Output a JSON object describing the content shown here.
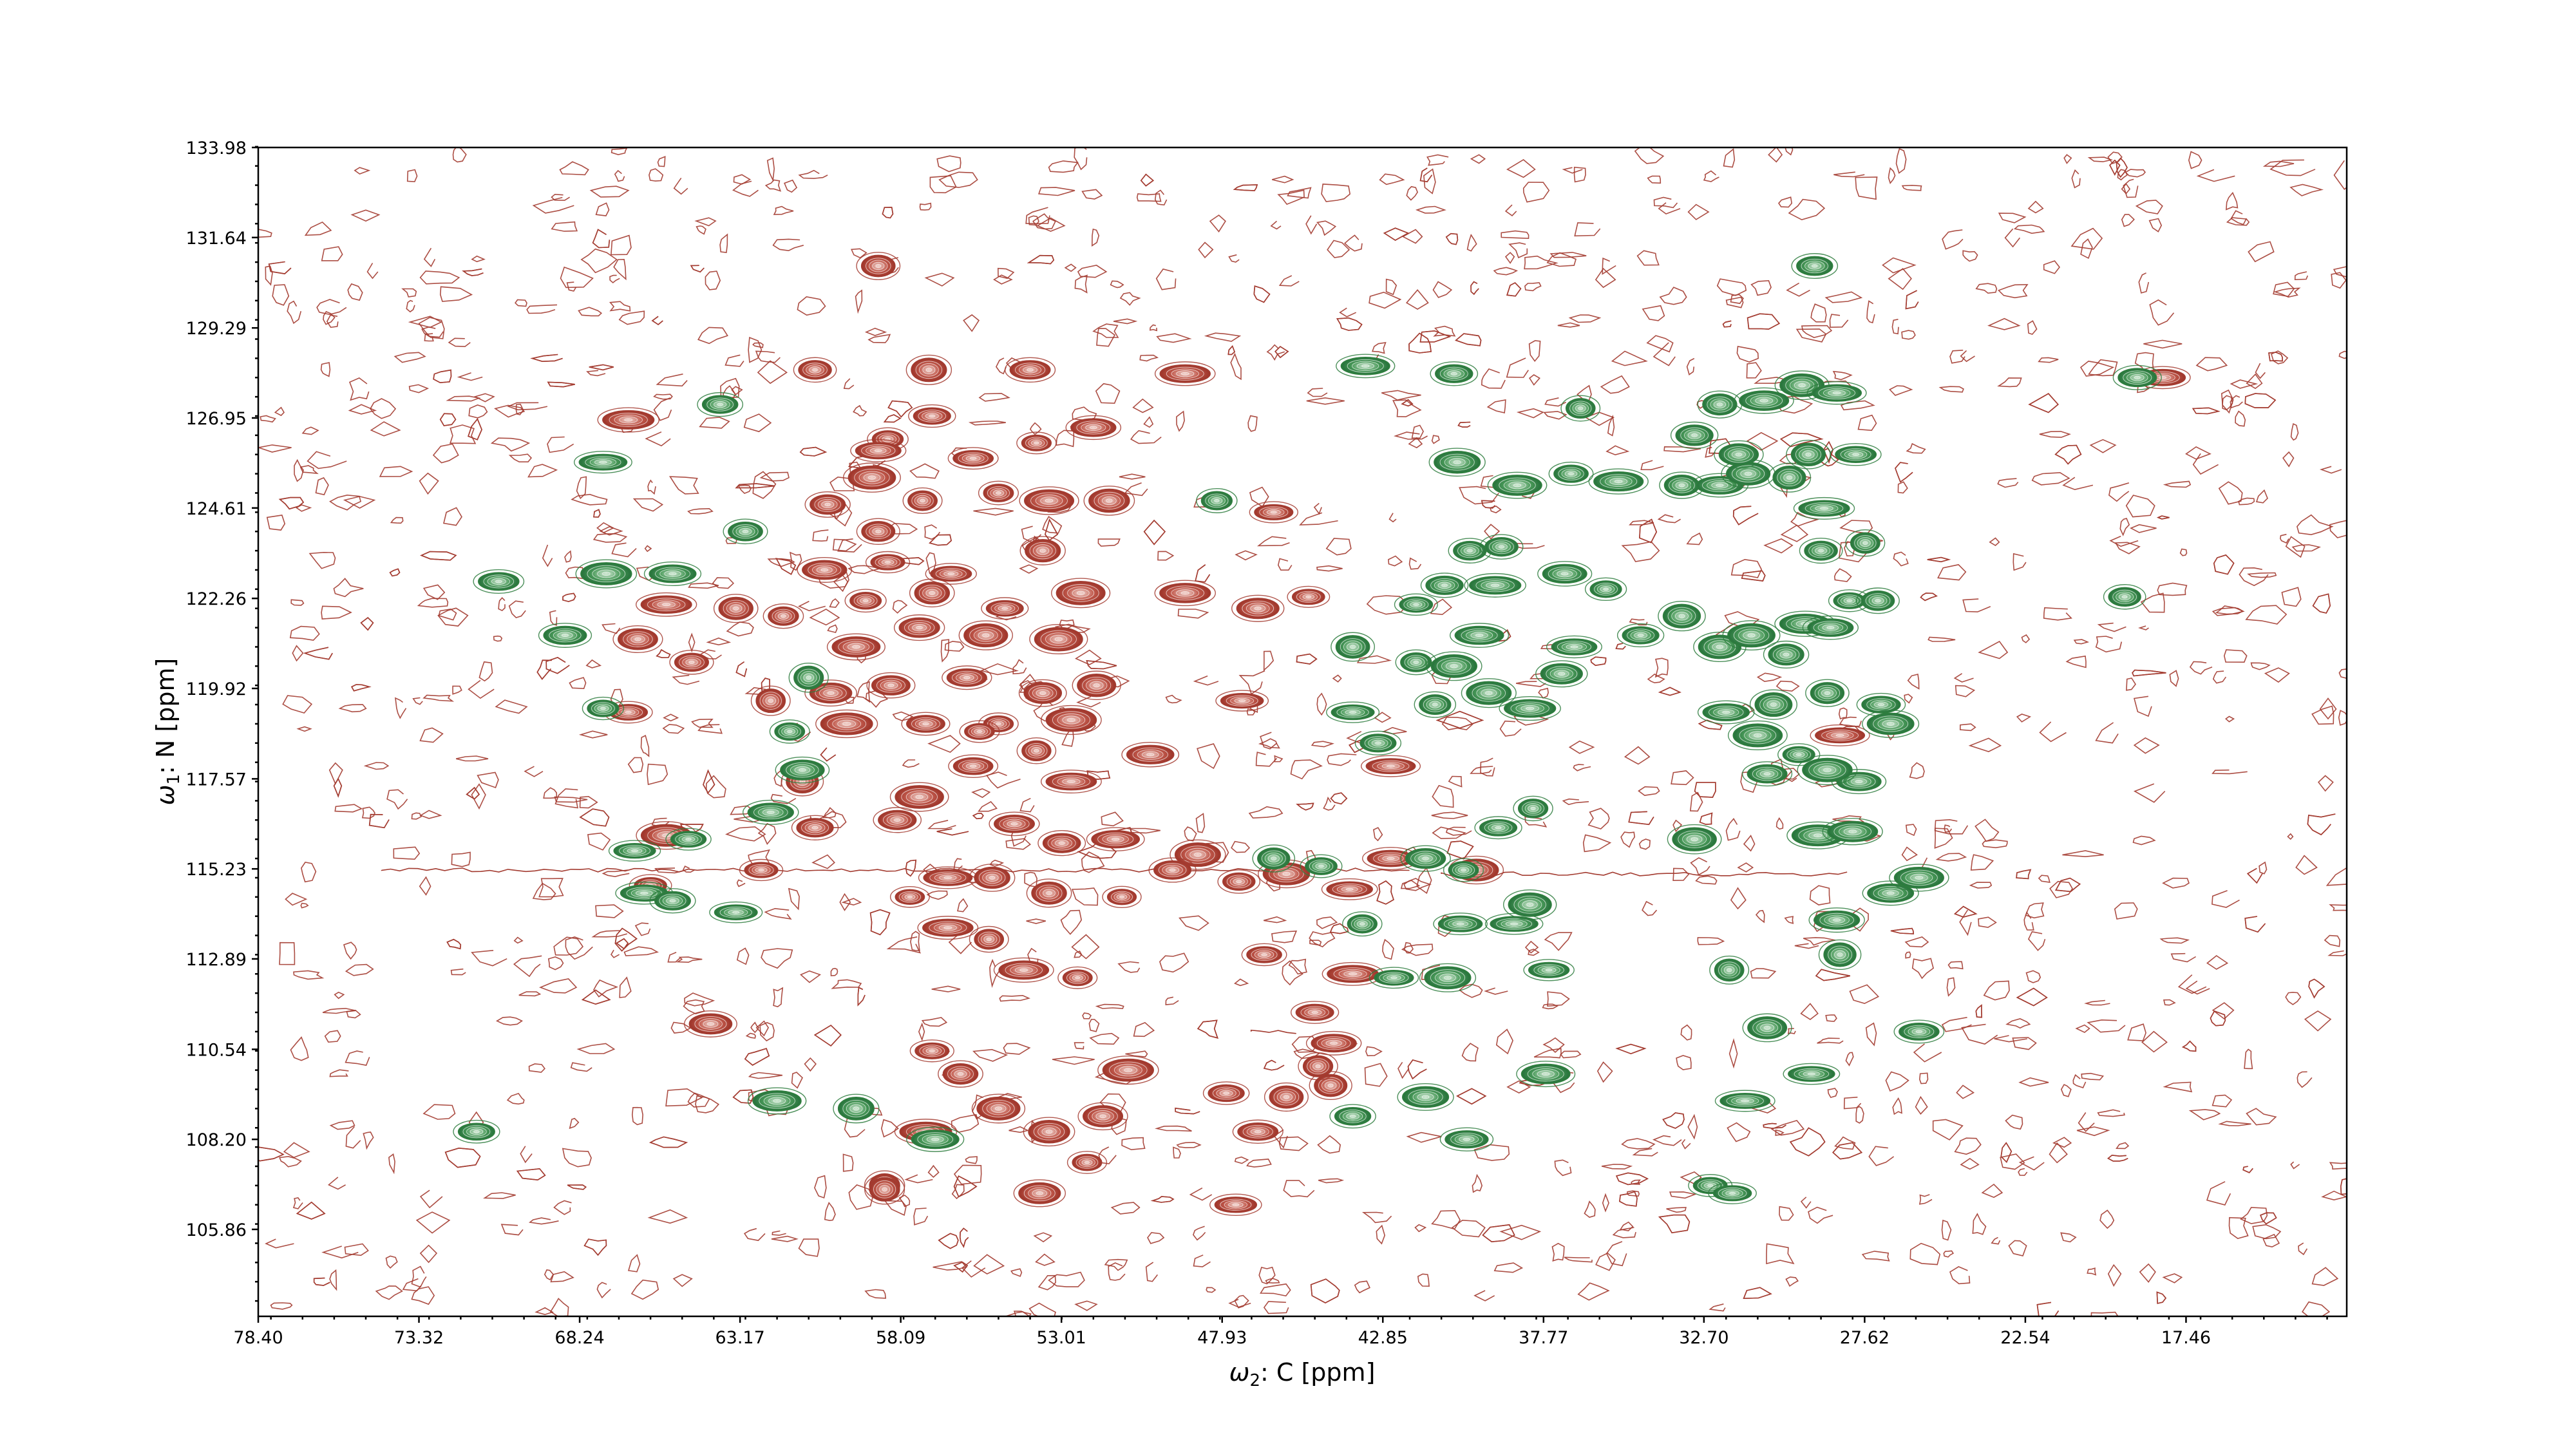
{
  "chart_data": {
    "type": "scatter",
    "subtype": "2D NMR contour spectrum",
    "xlabel_omega": "ω",
    "xlabel_sub": "2",
    "xlabel_rest": ": C [ppm]",
    "ylabel_omega": "ω",
    "ylabel_sub": "1",
    "ylabel_rest": ": N [ppm]",
    "x_ticks": [
      "78.40",
      "73.32",
      "68.24",
      "63.17",
      "58.09",
      "53.01",
      "47.93",
      "42.85",
      "37.77",
      "32.70",
      "27.62",
      "22.54",
      "17.46"
    ],
    "y_ticks": [
      "105.86",
      "108.20",
      "110.54",
      "112.89",
      "115.23",
      "117.57",
      "119.92",
      "122.26",
      "124.61",
      "126.95",
      "129.29",
      "131.64",
      "133.98"
    ],
    "xlim": [
      78.4,
      12.38
    ],
    "ylim": [
      133.98,
      103.6
    ],
    "x_reversed": true,
    "y_reversed": true,
    "grid": false,
    "colors": {
      "positive": "#a33b30",
      "positive_fill": "#b5473c",
      "negative": "#2e7d3e",
      "negative_fill": "#3b8f4c"
    },
    "series": [
      {
        "name": "positive",
        "color": "#a33b30",
        "points": [
          [
            58.6,
            107.0
          ],
          [
            57.3,
            108.4
          ],
          [
            55.0,
            109.0
          ],
          [
            56.2,
            109.9
          ],
          [
            53.4,
            108.4
          ],
          [
            52.2,
            107.6
          ],
          [
            51.7,
            108.8
          ],
          [
            50.9,
            110.0
          ],
          [
            53.7,
            106.8
          ],
          [
            58.6,
            106.9
          ],
          [
            57.1,
            110.5
          ],
          [
            64.1,
            111.2
          ],
          [
            55.3,
            113.4
          ],
          [
            54.2,
            112.6
          ],
          [
            52.5,
            112.4
          ],
          [
            57.8,
            114.5
          ],
          [
            55.2,
            115.0
          ],
          [
            53.4,
            114.6
          ],
          [
            51.1,
            114.5
          ],
          [
            48.7,
            115.6
          ],
          [
            47.4,
            114.9
          ],
          [
            45.9,
            115.1
          ],
          [
            43.9,
            114.7
          ],
          [
            43.8,
            112.5
          ],
          [
            47.8,
            109.4
          ],
          [
            45.9,
            109.3
          ],
          [
            44.5,
            109.6
          ],
          [
            46.8,
            108.4
          ],
          [
            44.9,
            110.1
          ],
          [
            44.4,
            110.7
          ],
          [
            45.0,
            111.5
          ],
          [
            47.5,
            106.5
          ],
          [
            66.0,
            114.8
          ],
          [
            65.5,
            116.1
          ],
          [
            62.5,
            115.2
          ],
          [
            56.6,
            115.0
          ],
          [
            53.0,
            115.9
          ],
          [
            49.5,
            115.2
          ],
          [
            60.8,
            116.3
          ],
          [
            58.2,
            116.5
          ],
          [
            54.5,
            116.4
          ],
          [
            51.3,
            116.0
          ],
          [
            57.5,
            117.1
          ],
          [
            55.8,
            117.9
          ],
          [
            53.8,
            118.3
          ],
          [
            52.7,
            117.5
          ],
          [
            59.8,
            119.0
          ],
          [
            57.3,
            119.0
          ],
          [
            55.0,
            119.0
          ],
          [
            52.7,
            119.1
          ],
          [
            60.3,
            119.8
          ],
          [
            58.4,
            120.0
          ],
          [
            56.0,
            120.2
          ],
          [
            53.6,
            119.8
          ],
          [
            51.9,
            120.0
          ],
          [
            59.5,
            121.0
          ],
          [
            57.5,
            121.5
          ],
          [
            55.4,
            121.3
          ],
          [
            53.1,
            121.2
          ],
          [
            61.8,
            121.8
          ],
          [
            59.2,
            122.2
          ],
          [
            57.1,
            122.4
          ],
          [
            54.8,
            122.0
          ],
          [
            52.4,
            122.4
          ],
          [
            60.5,
            123.0
          ],
          [
            58.5,
            123.2
          ],
          [
            56.5,
            122.9
          ],
          [
            53.6,
            123.5
          ],
          [
            66.7,
            119.3
          ],
          [
            62.2,
            119.6
          ],
          [
            64.7,
            120.6
          ],
          [
            63.3,
            122.0
          ],
          [
            65.5,
            122.1
          ],
          [
            66.4,
            121.2
          ],
          [
            58.8,
            124.0
          ],
          [
            57.4,
            124.8
          ],
          [
            55.0,
            125.0
          ],
          [
            53.4,
            124.8
          ],
          [
            51.5,
            124.8
          ],
          [
            59.0,
            125.4
          ],
          [
            55.8,
            125.9
          ],
          [
            53.8,
            126.3
          ],
          [
            52.0,
            126.7
          ],
          [
            57.1,
            127.0
          ],
          [
            58.5,
            126.4
          ],
          [
            60.8,
            128.2
          ],
          [
            57.2,
            128.2
          ],
          [
            54.0,
            128.2
          ],
          [
            49.1,
            128.1
          ],
          [
            49.1,
            122.4
          ],
          [
            46.8,
            122.0
          ],
          [
            45.2,
            122.3
          ],
          [
            46.3,
            124.5
          ],
          [
            47.3,
            119.6
          ],
          [
            66.7,
            126.9
          ],
          [
            58.8,
            130.9
          ],
          [
            39.9,
            115.2
          ],
          [
            42.6,
            115.5
          ],
          [
            42.6,
            117.9
          ],
          [
            28.4,
            118.7
          ],
          [
            18.2,
            128.0
          ],
          [
            46.6,
            113.0
          ],
          [
            56.6,
            113.7
          ],
          [
            61.2,
            117.5
          ],
          [
            50.2,
            118.2
          ],
          [
            55.6,
            118.8
          ],
          [
            60.4,
            124.7
          ],
          [
            58.8,
            126.1
          ]
        ]
      },
      {
        "name": "negative",
        "color": "#2e7d3e",
        "points": [
          [
            71.5,
            108.4
          ],
          [
            62.0,
            109.2
          ],
          [
            59.5,
            109.0
          ],
          [
            57.0,
            108.2
          ],
          [
            43.8,
            108.8
          ],
          [
            41.5,
            109.3
          ],
          [
            40.2,
            108.2
          ],
          [
            37.7,
            109.9
          ],
          [
            32.5,
            107.0
          ],
          [
            31.8,
            106.8
          ],
          [
            31.4,
            109.2
          ],
          [
            29.3,
            109.9
          ],
          [
            30.7,
            111.1
          ],
          [
            31.9,
            112.6
          ],
          [
            25.9,
            111.0
          ],
          [
            42.5,
            112.4
          ],
          [
            40.8,
            112.4
          ],
          [
            37.6,
            112.6
          ],
          [
            43.5,
            113.8
          ],
          [
            40.4,
            113.8
          ],
          [
            38.7,
            113.8
          ],
          [
            38.2,
            114.3
          ],
          [
            28.4,
            113.0
          ],
          [
            28.5,
            113.9
          ],
          [
            26.8,
            114.6
          ],
          [
            25.9,
            115.0
          ],
          [
            66.2,
            114.6
          ],
          [
            66.5,
            115.7
          ],
          [
            65.3,
            114.4
          ],
          [
            64.8,
            116.0
          ],
          [
            63.3,
            114.1
          ],
          [
            62.2,
            116.7
          ],
          [
            61.2,
            117.8
          ],
          [
            46.3,
            115.5
          ],
          [
            44.8,
            115.3
          ],
          [
            41.5,
            115.5
          ],
          [
            40.3,
            115.2
          ],
          [
            39.2,
            116.3
          ],
          [
            38.1,
            116.8
          ],
          [
            33.0,
            116.0
          ],
          [
            30.7,
            117.7
          ],
          [
            29.1,
            116.1
          ],
          [
            28.0,
            116.2
          ],
          [
            27.8,
            117.5
          ],
          [
            31.0,
            118.7
          ],
          [
            29.7,
            118.2
          ],
          [
            28.8,
            117.8
          ],
          [
            43.0,
            118.5
          ],
          [
            67.5,
            119.4
          ],
          [
            68.7,
            121.3
          ],
          [
            70.8,
            122.7
          ],
          [
            67.4,
            122.9
          ],
          [
            65.3,
            122.9
          ],
          [
            63.0,
            124.0
          ],
          [
            61.6,
            118.8
          ],
          [
            61.0,
            120.2
          ],
          [
            43.8,
            119.3
          ],
          [
            41.2,
            119.5
          ],
          [
            39.5,
            119.8
          ],
          [
            38.2,
            119.4
          ],
          [
            37.2,
            120.3
          ],
          [
            36.8,
            121.0
          ],
          [
            34.7,
            121.3
          ],
          [
            33.4,
            121.8
          ],
          [
            32.2,
            121.0
          ],
          [
            31.2,
            121.3
          ],
          [
            30.1,
            120.8
          ],
          [
            29.5,
            121.6
          ],
          [
            28.7,
            121.5
          ],
          [
            28.1,
            122.2
          ],
          [
            27.2,
            122.2
          ],
          [
            32.0,
            119.3
          ],
          [
            30.5,
            119.5
          ],
          [
            28.8,
            119.8
          ],
          [
            27.1,
            119.5
          ],
          [
            26.8,
            119.0
          ],
          [
            43.8,
            121.0
          ],
          [
            41.8,
            120.6
          ],
          [
            40.6,
            120.5
          ],
          [
            39.8,
            121.3
          ],
          [
            41.8,
            122.1
          ],
          [
            40.9,
            122.6
          ],
          [
            39.3,
            122.6
          ],
          [
            37.1,
            122.9
          ],
          [
            35.8,
            122.5
          ],
          [
            40.1,
            123.5
          ],
          [
            39.1,
            123.6
          ],
          [
            38.6,
            125.2
          ],
          [
            36.9,
            125.5
          ],
          [
            35.4,
            125.3
          ],
          [
            33.4,
            125.2
          ],
          [
            32.2,
            125.2
          ],
          [
            31.3,
            125.5
          ],
          [
            30.0,
            125.4
          ],
          [
            28.9,
            124.6
          ],
          [
            31.6,
            126.0
          ],
          [
            29.4,
            126.0
          ],
          [
            27.9,
            126.0
          ],
          [
            33.0,
            126.5
          ],
          [
            32.2,
            127.3
          ],
          [
            30.8,
            127.4
          ],
          [
            29.6,
            127.8
          ],
          [
            28.5,
            127.6
          ],
          [
            36.6,
            127.2
          ],
          [
            67.5,
            125.8
          ],
          [
            63.8,
            127.3
          ],
          [
            40.5,
            125.8
          ],
          [
            43.4,
            128.3
          ],
          [
            40.6,
            128.1
          ],
          [
            19.4,
            122.3
          ],
          [
            19.0,
            128.0
          ],
          [
            29.2,
            130.9
          ],
          [
            48.1,
            124.8
          ],
          [
            27.6,
            123.7
          ],
          [
            29.0,
            123.5
          ]
        ]
      }
    ]
  }
}
